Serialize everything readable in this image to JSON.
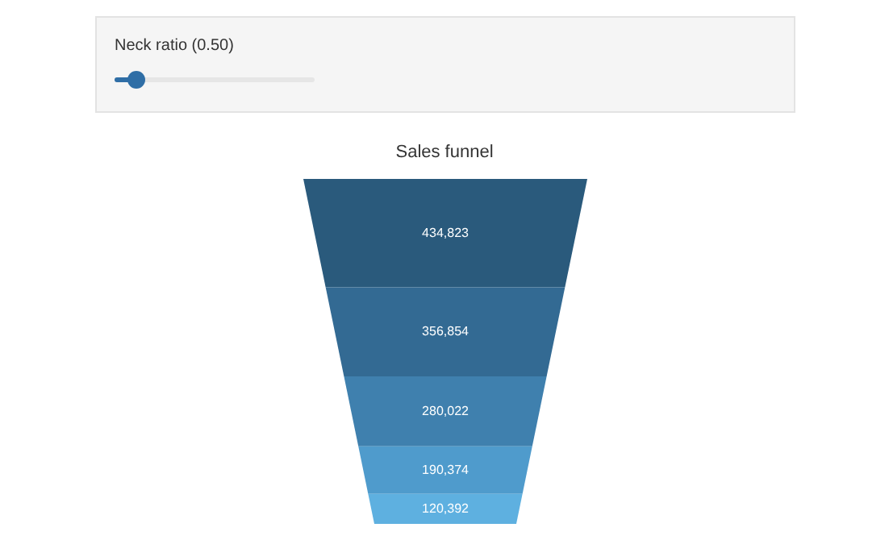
{
  "chart_data": {
    "type": "other",
    "title": "Sales funnel",
    "categories": [
      null,
      null,
      null,
      null,
      null
    ],
    "values": [
      434823,
      356854,
      280022,
      190374,
      120392
    ],
    "colors": [
      "#2a5a7c",
      "#336a93",
      "#3f80ae",
      "#4f9bcc",
      "#5eb0e0"
    ],
    "value_labels": [
      "434,823",
      "356,854",
      "280,022",
      "190,374",
      "120,392"
    ],
    "annotations": [
      "Neck ratio (0.50)"
    ]
  }
}
